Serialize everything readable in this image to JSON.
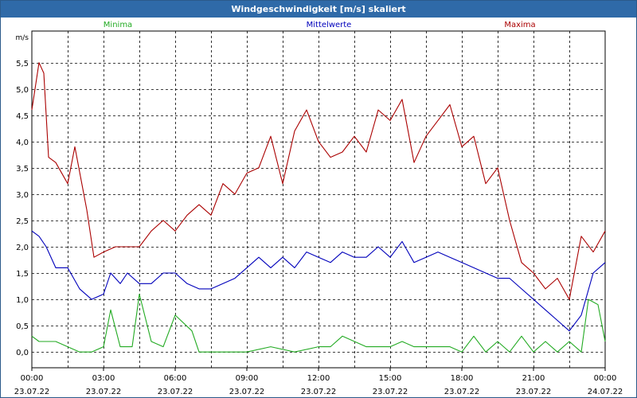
{
  "window": {
    "title": "Windgeschwindigkeit [m/s] skaliert"
  },
  "colors": {
    "minima": "#22aa22",
    "mittel": "#0000bb",
    "maxima": "#aa0000",
    "grid": "#000000",
    "title_bg": "#2f6aa8"
  },
  "chart_data": {
    "type": "line",
    "title": "Windgeschwindigkeit [m/s] skaliert",
    "ylabel": "m/s",
    "xlabel": "",
    "ylim": [
      -0.3,
      6.1
    ],
    "yticks": [
      0.0,
      0.5,
      1.0,
      1.5,
      2.0,
      2.5,
      3.0,
      3.5,
      4.0,
      4.5,
      5.0,
      5.5
    ],
    "ytick_labels": [
      "0,0",
      "0,5",
      "1,0",
      "1,5",
      "2,0",
      "2,5",
      "3,0",
      "3,5",
      "4,0",
      "4,5",
      "5,0",
      "5,5"
    ],
    "xlim": [
      0,
      24
    ],
    "xticks": [
      {
        "t": 0,
        "time": "00:00",
        "date": "23.07.22"
      },
      {
        "t": 3,
        "time": "03:00",
        "date": "23.07.22"
      },
      {
        "t": 6,
        "time": "06:00",
        "date": "23.07.22"
      },
      {
        "t": 9,
        "time": "09:00",
        "date": "23.07.22"
      },
      {
        "t": 12,
        "time": "12:00",
        "date": "23.07.22"
      },
      {
        "t": 15,
        "time": "15:00",
        "date": "23.07.22"
      },
      {
        "t": 18,
        "time": "18:00",
        "date": "23.07.22"
      },
      {
        "t": 21,
        "time": "21:00",
        "date": "23.07.22"
      },
      {
        "t": 24,
        "time": "00:00",
        "date": "24.07.22"
      }
    ],
    "legend": [
      "Minima",
      "Mittelwerte",
      "Maxima"
    ],
    "series": [
      {
        "name": "Minima",
        "color": "#22aa22",
        "values": [
          [
            0,
            0.3
          ],
          [
            0.3,
            0.2
          ],
          [
            1,
            0.2
          ],
          [
            1.5,
            0.1
          ],
          [
            2,
            0
          ],
          [
            2.5,
            0
          ],
          [
            3,
            0.1
          ],
          [
            3.3,
            0.8
          ],
          [
            3.7,
            0.1
          ],
          [
            4.2,
            0.1
          ],
          [
            4.5,
            1.1
          ],
          [
            5,
            0.2
          ],
          [
            5.5,
            0.1
          ],
          [
            6,
            0.7
          ],
          [
            6.7,
            0.4
          ],
          [
            7,
            0
          ],
          [
            8,
            0
          ],
          [
            9,
            0
          ],
          [
            10,
            0.1
          ],
          [
            11,
            0
          ],
          [
            12,
            0.1
          ],
          [
            12.5,
            0.1
          ],
          [
            13,
            0.3
          ],
          [
            14,
            0.1
          ],
          [
            15,
            0.1
          ],
          [
            15.5,
            0.2
          ],
          [
            16,
            0.1
          ],
          [
            17,
            0.1
          ],
          [
            17.5,
            0.1
          ],
          [
            18,
            0
          ],
          [
            18.5,
            0.3
          ],
          [
            19,
            0
          ],
          [
            19.5,
            0.2
          ],
          [
            20,
            0
          ],
          [
            20.5,
            0.3
          ],
          [
            21,
            0
          ],
          [
            21.5,
            0.2
          ],
          [
            22,
            0
          ],
          [
            22.5,
            0.2
          ],
          [
            23,
            0
          ],
          [
            23.3,
            1.0
          ],
          [
            23.7,
            0.9
          ],
          [
            24,
            0.2
          ]
        ]
      },
      {
        "name": "Mittelwerte",
        "color": "#0000bb",
        "values": [
          [
            0,
            2.3
          ],
          [
            0.3,
            2.2
          ],
          [
            0.6,
            2.0
          ],
          [
            1,
            1.6
          ],
          [
            1.5,
            1.6
          ],
          [
            2,
            1.2
          ],
          [
            2.5,
            1.0
          ],
          [
            3,
            1.1
          ],
          [
            3.3,
            1.5
          ],
          [
            3.7,
            1.3
          ],
          [
            4,
            1.5
          ],
          [
            4.5,
            1.3
          ],
          [
            5,
            1.3
          ],
          [
            5.5,
            1.5
          ],
          [
            6,
            1.5
          ],
          [
            6.5,
            1.3
          ],
          [
            7,
            1.2
          ],
          [
            7.5,
            1.2
          ],
          [
            8,
            1.3
          ],
          [
            8.5,
            1.4
          ],
          [
            9,
            1.6
          ],
          [
            9.5,
            1.8
          ],
          [
            10,
            1.6
          ],
          [
            10.5,
            1.8
          ],
          [
            11,
            1.6
          ],
          [
            11.5,
            1.9
          ],
          [
            12,
            1.8
          ],
          [
            12.5,
            1.7
          ],
          [
            13,
            1.9
          ],
          [
            13.5,
            1.8
          ],
          [
            14,
            1.8
          ],
          [
            14.5,
            2.0
          ],
          [
            15,
            1.8
          ],
          [
            15.5,
            2.1
          ],
          [
            16,
            1.7
          ],
          [
            16.5,
            1.8
          ],
          [
            17,
            1.9
          ],
          [
            17.5,
            1.8
          ],
          [
            18,
            1.7
          ],
          [
            18.5,
            1.6
          ],
          [
            19,
            1.5
          ],
          [
            19.5,
            1.4
          ],
          [
            20,
            1.4
          ],
          [
            20.5,
            1.2
          ],
          [
            21,
            1.0
          ],
          [
            21.5,
            0.8
          ],
          [
            22,
            0.6
          ],
          [
            22.5,
            0.4
          ],
          [
            23,
            0.7
          ],
          [
            23.5,
            1.5
          ],
          [
            24,
            1.7
          ]
        ]
      },
      {
        "name": "Maxima",
        "color": "#aa0000",
        "values": [
          [
            0,
            4.6
          ],
          [
            0.3,
            5.5
          ],
          [
            0.5,
            5.3
          ],
          [
            0.7,
            3.7
          ],
          [
            1,
            3.6
          ],
          [
            1.5,
            3.2
          ],
          [
            1.8,
            3.9
          ],
          [
            2.3,
            2.7
          ],
          [
            2.6,
            1.8
          ],
          [
            3,
            1.9
          ],
          [
            3.5,
            2.0
          ],
          [
            4,
            2.0
          ],
          [
            4.5,
            2.0
          ],
          [
            5,
            2.3
          ],
          [
            5.5,
            2.5
          ],
          [
            6,
            2.3
          ],
          [
            6.5,
            2.6
          ],
          [
            7,
            2.8
          ],
          [
            7.5,
            2.6
          ],
          [
            8,
            3.2
          ],
          [
            8.5,
            3.0
          ],
          [
            9,
            3.4
          ],
          [
            9.5,
            3.5
          ],
          [
            10,
            4.1
          ],
          [
            10.5,
            3.2
          ],
          [
            11,
            4.2
          ],
          [
            11.5,
            4.6
          ],
          [
            12,
            4.0
          ],
          [
            12.5,
            3.7
          ],
          [
            13,
            3.8
          ],
          [
            13.5,
            4.1
          ],
          [
            14,
            3.8
          ],
          [
            14.5,
            4.6
          ],
          [
            15,
            4.4
          ],
          [
            15.5,
            4.8
          ],
          [
            16,
            3.6
          ],
          [
            16.5,
            4.1
          ],
          [
            17,
            4.4
          ],
          [
            17.5,
            4.7
          ],
          [
            18,
            3.9
          ],
          [
            18.5,
            4.1
          ],
          [
            19,
            3.2
          ],
          [
            19.5,
            3.5
          ],
          [
            20,
            2.5
          ],
          [
            20.5,
            1.7
          ],
          [
            21,
            1.5
          ],
          [
            21.5,
            1.2
          ],
          [
            22,
            1.4
          ],
          [
            22.5,
            1.0
          ],
          [
            23,
            2.2
          ],
          [
            23.5,
            1.9
          ],
          [
            24,
            2.3
          ]
        ]
      }
    ]
  }
}
